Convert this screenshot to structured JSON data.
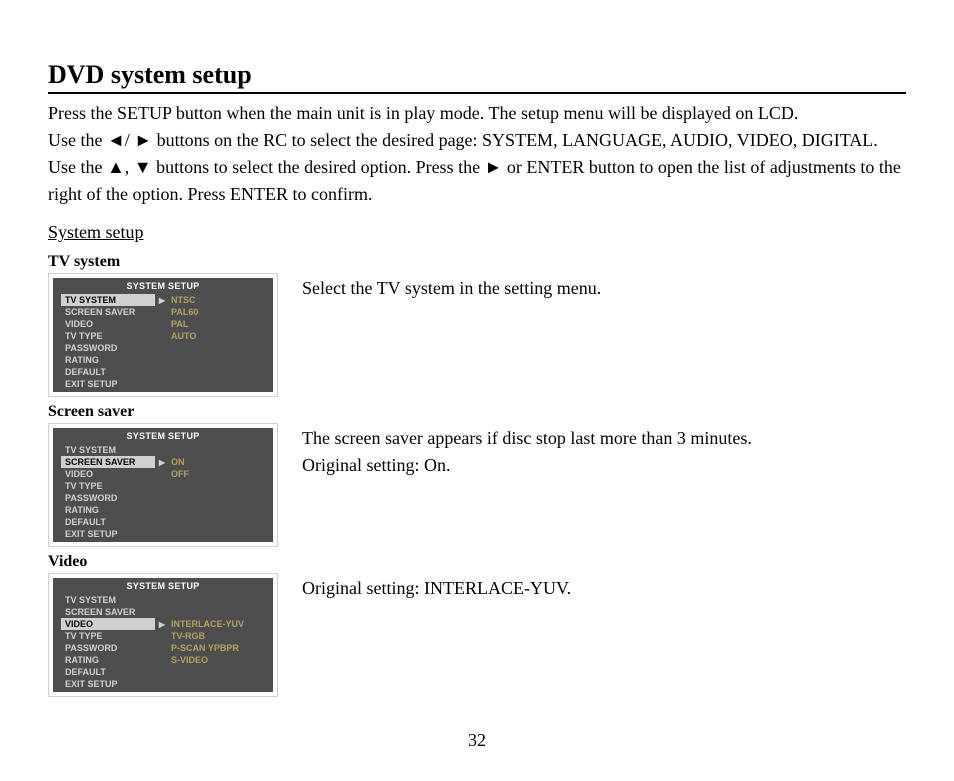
{
  "title": "DVD system setup",
  "intro_lines": [
    "Press the SETUP button when the main unit is in play mode. The setup menu will be displayed on LCD.",
    "Use the ◄/ ► buttons on the RC to select the desired page: SYSTEM, LANGUAGE, AUDIO, VIDEO, DIGITAL.",
    "Use the ▲, ▼ buttons to select the desired option. Press the ► or ENTER button to open the list of adjustments to the right of the option. Press ENTER to confirm."
  ],
  "section_subtitle": "System setup",
  "menu_header": "SYSTEM SETUP",
  "left_items": [
    "TV SYSTEM",
    "SCREEN SAVER",
    "VIDEO",
    "TV TYPE",
    "PASSWORD",
    "RATING",
    "DEFAULT",
    "EXIT   SETUP"
  ],
  "sections": [
    {
      "label": "TV system",
      "selected_index": 0,
      "right_items": [
        "NTSC",
        "PAL60",
        "PAL",
        "AUTO"
      ],
      "desc": [
        "Select the TV system in the setting menu."
      ]
    },
    {
      "label": "Screen saver",
      "selected_index": 1,
      "right_items": [
        "ON",
        "OFF"
      ],
      "desc": [
        "The screen saver appears if disc stop last more than 3 minutes.",
        "Original setting: On."
      ]
    },
    {
      "label": "Video",
      "selected_index": 2,
      "right_items": [
        "INTERLACE-YUV",
        "TV-RGB",
        "P-SCAN YPBPR",
        "S-VIDEO"
      ],
      "desc": [
        "Original setting: INTERLACE-YUV."
      ]
    }
  ],
  "page_number": "32",
  "colors": {
    "menu_bg": "#4e4e4e",
    "menu_text": "#d0d0d0",
    "menu_header_text": "#ffffff",
    "menu_selected_bg": "#d0d0d0",
    "menu_selected_text": "#000000",
    "menu_value_text": "#b4a060"
  }
}
